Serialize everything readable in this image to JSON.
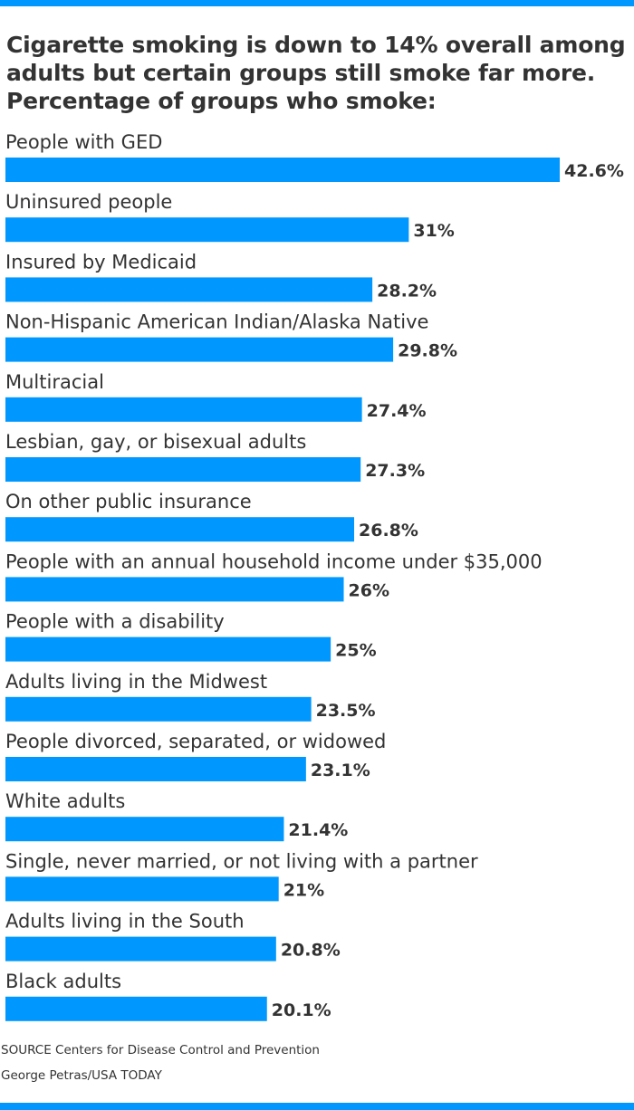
{
  "colors": {
    "accent": "#0098fe",
    "text": "#333333",
    "background": "#ffffff"
  },
  "header": {
    "title_lines": [
      "Cigarette smoking is down to 14% overall among",
      "adults but certain groups still smoke far more.",
      "Percentage of groups who smoke:"
    ]
  },
  "chart_data": {
    "type": "bar",
    "orientation": "horizontal",
    "title": "Cigarette smoking is down to 14% overall among adults but certain groups still smoke far more. Percentage of groups who smoke:",
    "categories": [
      "People with GED",
      "Uninsured people",
      "Insured by Medicaid",
      "Non-Hispanic American Indian/Alaska Native",
      "Multiracial",
      "Lesbian, gay, or bisexual adults",
      "On other public insurance",
      "People with an annual household income under $35,000",
      "People with a disability",
      "Adults living in the Midwest",
      "People divorced, separated, or widowed",
      "White adults",
      "Single, never married, or not living with a partner",
      "Adults living in the South",
      "Black adults"
    ],
    "values": [
      42.6,
      31,
      28.2,
      29.8,
      27.4,
      27.3,
      26.8,
      26,
      25,
      23.5,
      23.1,
      21.4,
      21,
      20.8,
      20.1
    ],
    "value_labels": [
      "42.6%",
      "31%",
      "28.2%",
      "29.8%",
      "27.4%",
      "27.3%",
      "26.8%",
      "26%",
      "25%",
      "23.5%",
      "23.1%",
      "21.4%",
      "21%",
      "20.8%",
      "20.1%"
    ],
    "unit": "%",
    "grid": false,
    "legend": "none",
    "bar_color": "#0098fe"
  },
  "footer": {
    "source": "SOURCE Centers for Disease Control and Prevention",
    "credit": "George Petras/USA TODAY"
  }
}
